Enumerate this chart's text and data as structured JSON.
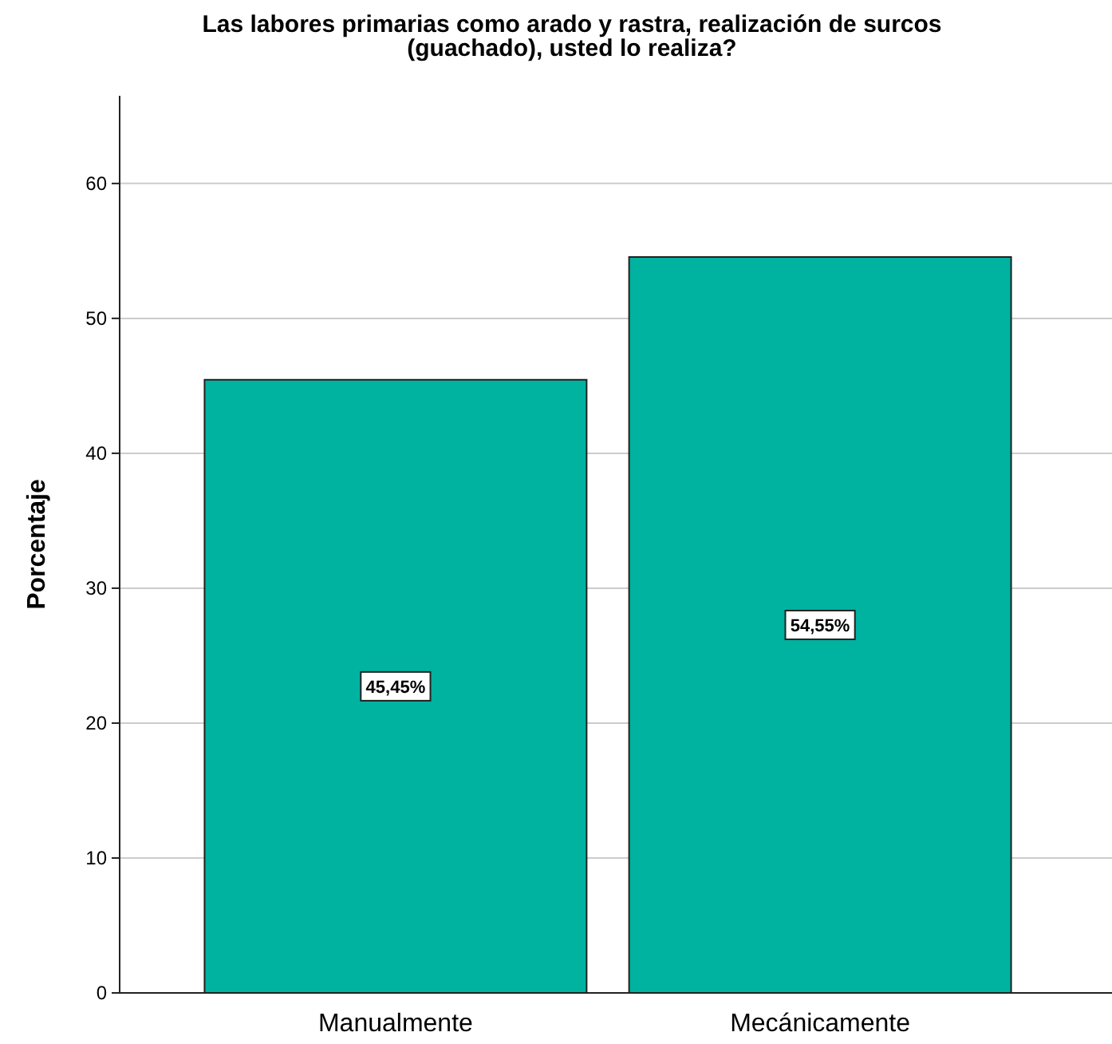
{
  "chart_data": {
    "type": "bar",
    "title": "Las labores primarias como arado y rastra, realización de surcos\n(guachado), usted lo realiza?",
    "ylabel": "Porcentaje",
    "categories": [
      "Manualmente",
      "Mecánicamente"
    ],
    "values": [
      45.45,
      54.55
    ],
    "value_labels": [
      "45,45%",
      "54,55%"
    ],
    "color": "#00b2a0",
    "ylim": [
      0,
      66.5
    ],
    "yticks": [
      0,
      10,
      20,
      30,
      40,
      50,
      60
    ],
    "grid": "y"
  }
}
